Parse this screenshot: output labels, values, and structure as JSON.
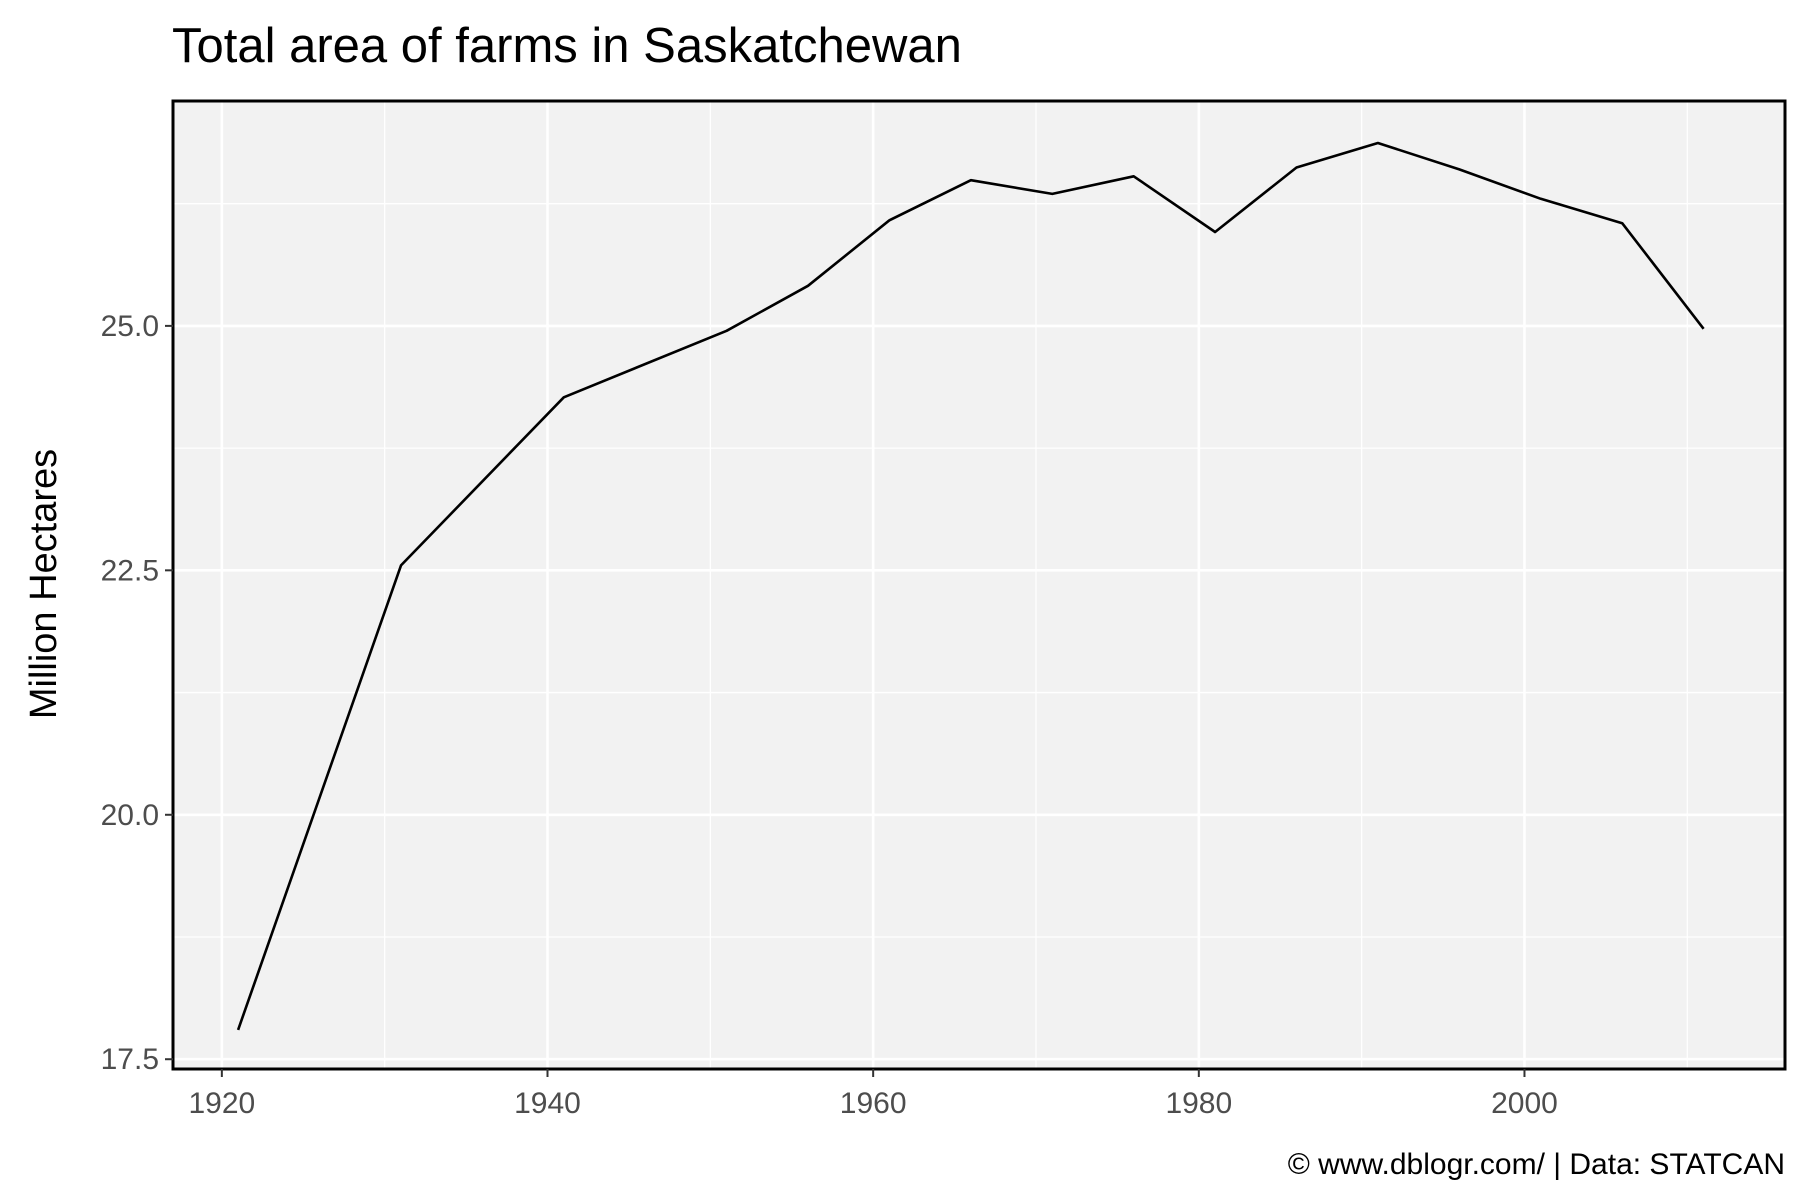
{
  "chart_data": {
    "type": "line",
    "title": "Total area of farms in Saskatchewan",
    "xlabel": "",
    "ylabel": "Million Hectares",
    "caption": "© www.dblogr.com/  |  Data: STATCAN",
    "xlim": [
      1917,
      2016
    ],
    "ylim": [
      17.4,
      27.3
    ],
    "x_ticks": [
      1920,
      1940,
      1960,
      1980,
      2000
    ],
    "y_ticks": [
      17.5,
      20.0,
      22.5,
      25.0
    ],
    "x_tick_labels": [
      "1920",
      "1940",
      "1960",
      "1980",
      "2000"
    ],
    "y_tick_labels": [
      "17.5",
      "20.0",
      "22.5",
      "25.0"
    ],
    "grid": true,
    "colors": {
      "panel_background": "#f2f2f2",
      "grid": "#ffffff",
      "line": "#000000",
      "border": "#000000"
    },
    "series": [
      {
        "x": [
          1921,
          1931,
          1941,
          1951,
          1956,
          1961,
          1966,
          1971,
          1976,
          1981,
          1986,
          1991,
          1996,
          2001,
          2006,
          2011
        ],
        "values": [
          17.8,
          22.55,
          24.27,
          24.95,
          25.41,
          26.08,
          26.49,
          26.35,
          26.53,
          25.96,
          26.62,
          26.87,
          26.6,
          26.3,
          26.05,
          24.97
        ]
      }
    ]
  }
}
